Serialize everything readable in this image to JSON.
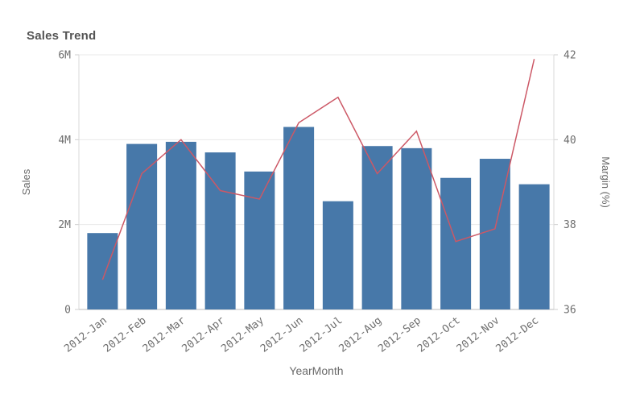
{
  "title": "Sales Trend",
  "colors": {
    "bar": "#4778a9",
    "line": "#cc5866",
    "title_text": "#545454",
    "axis_text": "#6e6e6e",
    "gridline": "#e9e9e9",
    "side_axis_line": "#dadada",
    "bottom_axis_line": "#bdbdbd",
    "tick_mark": "#cfcfcf"
  },
  "chart_data": {
    "type": "combo-bar-line",
    "title": "Sales Trend",
    "categories": [
      "2012-Jan",
      "2012-Feb",
      "2012-Mar",
      "2012-Apr",
      "2012-May",
      "2012-Jun",
      "2012-Jul",
      "2012-Aug",
      "2012-Sep",
      "2012-Oct",
      "2012-Nov",
      "2012-Dec"
    ],
    "series": [
      {
        "name": "Sales",
        "type": "bar",
        "axis": "left",
        "values_millions": [
          1.8,
          3.9,
          3.95,
          3.7,
          3.25,
          4.3,
          2.55,
          3.85,
          3.8,
          3.1,
          3.55,
          2.95
        ]
      },
      {
        "name": "Margin (%)",
        "type": "line",
        "axis": "right",
        "values": [
          36.7,
          39.2,
          40.0,
          38.8,
          38.6,
          40.4,
          41.0,
          39.2,
          40.2,
          37.6,
          37.9,
          41.9
        ]
      }
    ],
    "xlabel": "YearMonth",
    "left_axis": {
      "label": "Sales",
      "min_millions": 0,
      "max_millions": 6,
      "tick_labels": [
        "0",
        "2M",
        "4M",
        "6M"
      ],
      "tick_values_millions": [
        0,
        2,
        4,
        6
      ]
    },
    "right_axis": {
      "label": "Margin (%)",
      "min": 36,
      "max": 42,
      "tick_labels": [
        "36",
        "38",
        "40",
        "42"
      ],
      "tick_values": [
        36,
        38,
        40,
        42
      ]
    },
    "grid": true,
    "legend": false,
    "x_tick_rotation_deg": -38
  }
}
